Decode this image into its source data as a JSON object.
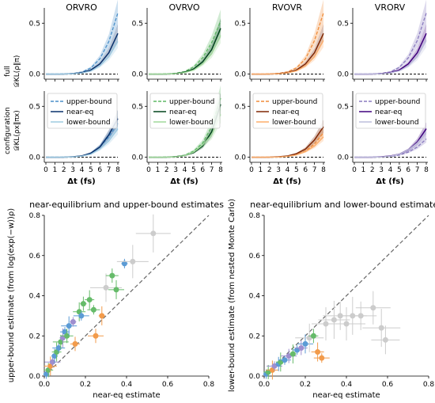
{
  "panel_titles": [
    "ORVRO",
    "OVRVO",
    "RVOVR",
    "VRORV"
  ],
  "row_labels": [
    {
      "line1": "full",
      "line2": "𝒟KL(ρ‖π)"
    },
    {
      "line1": "configuration",
      "line2": "𝒟KL(ρx‖πx)"
    }
  ],
  "x_label": "Δt (fs)",
  "legend_labels": [
    "upper-bound",
    "near-eq",
    "lower-bound"
  ],
  "colors": {
    "ORVRO": {
      "dark": "#08306b",
      "mid": "#4a8fc9",
      "light": "#9ecae1"
    },
    "OVRVO": {
      "dark": "#00441b",
      "mid": "#5fb865",
      "light": "#a1d99b"
    },
    "RVOVR": {
      "dark": "#7f2704",
      "mid": "#f08c3a",
      "light": "#fdae6b"
    },
    "VRORV": {
      "dark": "#3f007d",
      "mid": "#8a7bbf",
      "light": "#bcbddc"
    },
    "gray": "#cccccc"
  },
  "chart_data": [
    {
      "type": "line",
      "panel": "ORVRO / full",
      "x": [
        0,
        1,
        2,
        3,
        4,
        5,
        6,
        7,
        8
      ],
      "xlabel": "Δt (fs)",
      "ylabel": "𝒟KL(ρ‖π)",
      "yticks": [
        0.0,
        0.5
      ],
      "ylim": [
        -0.05,
        0.65
      ],
      "series": [
        {
          "name": "upper-bound",
          "values": [
            0,
            0,
            0.002,
            0.006,
            0.02,
            0.06,
            0.15,
            0.32,
            0.6
          ]
        },
        {
          "name": "near-eq",
          "values": [
            0,
            0,
            0.001,
            0.004,
            0.014,
            0.04,
            0.1,
            0.21,
            0.4
          ]
        },
        {
          "name": "lower-bound",
          "values": [
            0,
            0,
            0.001,
            0.003,
            0.01,
            0.03,
            0.08,
            0.17,
            0.32
          ]
        }
      ]
    },
    {
      "type": "line",
      "panel": "OVRVO / full",
      "x": [
        0,
        1,
        2,
        3,
        4,
        5,
        6,
        7,
        8
      ],
      "xlabel": "Δt (fs)",
      "yticks": [
        0.0,
        0.5
      ],
      "ylim": [
        -0.05,
        0.65
      ],
      "series": [
        {
          "name": "upper-bound",
          "values": [
            0,
            0,
            0.002,
            0.008,
            0.025,
            0.07,
            0.16,
            0.31,
            0.52
          ]
        },
        {
          "name": "near-eq",
          "values": [
            0,
            0,
            0.001,
            0.005,
            0.018,
            0.05,
            0.12,
            0.24,
            0.45
          ]
        },
        {
          "name": "lower-bound",
          "values": [
            0,
            0,
            0.001,
            0.004,
            0.014,
            0.04,
            0.1,
            0.2,
            0.38
          ]
        }
      ]
    },
    {
      "type": "line",
      "panel": "RVOVR / full",
      "x": [
        0,
        1,
        2,
        3,
        4,
        5,
        6,
        7,
        8
      ],
      "xlabel": "Δt (fs)",
      "yticks": [
        0.0,
        0.5
      ],
      "ylim": [
        -0.05,
        0.65
      ],
      "series": [
        {
          "name": "upper-bound",
          "values": [
            0,
            0,
            0.002,
            0.007,
            0.022,
            0.06,
            0.15,
            0.33,
            0.6
          ]
        },
        {
          "name": "near-eq",
          "values": [
            0,
            0,
            0.001,
            0.004,
            0.014,
            0.04,
            0.1,
            0.21,
            0.4
          ]
        },
        {
          "name": "lower-bound",
          "values": [
            0,
            0,
            0.001,
            0.003,
            0.011,
            0.032,
            0.08,
            0.17,
            0.33
          ]
        }
      ]
    },
    {
      "type": "line",
      "panel": "VRORV / full",
      "x": [
        0,
        1,
        2,
        3,
        4,
        5,
        6,
        7,
        8
      ],
      "xlabel": "Δt (fs)",
      "yticks": [
        0.0,
        0.5
      ],
      "ylim": [
        -0.05,
        0.65
      ],
      "series": [
        {
          "name": "upper-bound",
          "values": [
            0,
            0,
            0.002,
            0.007,
            0.022,
            0.065,
            0.16,
            0.33,
            0.6
          ]
        },
        {
          "name": "near-eq",
          "values": [
            0,
            0,
            0.001,
            0.004,
            0.014,
            0.04,
            0.1,
            0.21,
            0.4
          ]
        },
        {
          "name": "lower-bound",
          "values": [
            0,
            0,
            0.001,
            0.003,
            0.011,
            0.032,
            0.08,
            0.17,
            0.33
          ]
        }
      ]
    },
    {
      "type": "line",
      "panel": "ORVRO / configuration",
      "x": [
        0,
        1,
        2,
        3,
        4,
        5,
        6,
        7,
        8
      ],
      "xlabel": "Δt (fs)",
      "ylabel": "𝒟KL(ρx‖πx)",
      "yticks": [
        0.0,
        0.5
      ],
      "ylim": [
        -0.05,
        0.65
      ],
      "series": [
        {
          "name": "upper-bound",
          "values": [
            0,
            0,
            0.001,
            0.004,
            0.013,
            0.04,
            0.1,
            0.2,
            0.33
          ]
        },
        {
          "name": "near-eq",
          "values": [
            0,
            0,
            0.001,
            0.004,
            0.013,
            0.04,
            0.1,
            0.22,
            0.38
          ]
        },
        {
          "name": "lower-bound",
          "values": [
            0,
            0,
            0.001,
            0.003,
            0.01,
            0.03,
            0.08,
            0.16,
            0.28
          ]
        }
      ]
    },
    {
      "type": "line",
      "panel": "OVRVO / configuration",
      "x": [
        0,
        1,
        2,
        3,
        4,
        5,
        6,
        7,
        8
      ],
      "xlabel": "Δt (fs)",
      "yticks": [
        0.0,
        0.5
      ],
      "ylim": [
        -0.05,
        0.65
      ],
      "series": [
        {
          "name": "upper-bound",
          "values": [
            0,
            0,
            0.002,
            0.006,
            0.02,
            0.06,
            0.14,
            0.3,
            0.58
          ]
        },
        {
          "name": "near-eq",
          "values": [
            0,
            0,
            0.001,
            0.005,
            0.016,
            0.045,
            0.11,
            0.25,
            0.52
          ]
        },
        {
          "name": "lower-bound",
          "values": [
            0,
            0,
            0.001,
            0.004,
            0.015,
            0.05,
            0.12,
            0.22,
            0.42
          ]
        }
      ]
    },
    {
      "type": "line",
      "panel": "RVOVR / configuration",
      "x": [
        0,
        1,
        2,
        3,
        4,
        5,
        6,
        7,
        8
      ],
      "xlabel": "Δt (fs)",
      "yticks": [
        0.0,
        0.5
      ],
      "ylim": [
        -0.05,
        0.65
      ],
      "series": [
        {
          "name": "upper-bound",
          "values": [
            0,
            0,
            0.001,
            0.003,
            0.009,
            0.025,
            0.06,
            0.13,
            0.24
          ]
        },
        {
          "name": "near-eq",
          "values": [
            0,
            0,
            0.001,
            0.004,
            0.012,
            0.035,
            0.08,
            0.17,
            0.3
          ]
        },
        {
          "name": "lower-bound",
          "values": [
            0,
            0,
            0.001,
            0.002,
            0.008,
            0.022,
            0.055,
            0.11,
            0.2
          ]
        }
      ]
    },
    {
      "type": "line",
      "panel": "VRORV / configuration",
      "x": [
        0,
        1,
        2,
        3,
        4,
        5,
        6,
        7,
        8
      ],
      "xlabel": "Δt (fs)",
      "yticks": [
        0.0,
        0.5
      ],
      "ylim": [
        -0.05,
        0.65
      ],
      "series": [
        {
          "name": "upper-bound",
          "values": [
            0,
            0,
            0.001,
            0.003,
            0.008,
            0.02,
            0.05,
            0.1,
            0.18
          ]
        },
        {
          "name": "near-eq",
          "values": [
            0,
            0,
            0.001,
            0.004,
            0.012,
            0.03,
            0.07,
            0.15,
            0.28
          ]
        },
        {
          "name": "lower-bound",
          "values": [
            0,
            0,
            0.001,
            0.003,
            0.01,
            0.03,
            0.07,
            0.14,
            0.25
          ]
        }
      ]
    },
    {
      "type": "scatter",
      "title": "near-equilibrium and upper-bound estimates",
      "xlabel": "near-eq estimate",
      "ylabel": "upper-bound estimate (from log(exp(−w))ρ)",
      "xlim": [
        0,
        0.8
      ],
      "ylim": [
        0,
        0.8
      ],
      "ticks": [
        0.0,
        0.2,
        0.4,
        0.6,
        0.8
      ],
      "reference_line": "y = x (dashed)",
      "points": [
        {
          "x": 0.01,
          "y": 0.01,
          "s": "ORVRO"
        },
        {
          "x": 0.02,
          "y": 0.03,
          "s": "OVRVO"
        },
        {
          "x": 0.03,
          "y": 0.05,
          "s": "RVOVR"
        },
        {
          "x": 0.04,
          "y": 0.07,
          "s": "VRORV"
        },
        {
          "x": 0.05,
          "y": 0.1,
          "s": "ORVRO"
        },
        {
          "x": 0.06,
          "y": 0.12,
          "s": "OVRVO"
        },
        {
          "x": 0.07,
          "y": 0.14,
          "s": "ORVRO"
        },
        {
          "x": 0.08,
          "y": 0.17,
          "s": "OVRVO"
        },
        {
          "x": 0.09,
          "y": 0.19,
          "s": "VRORV"
        },
        {
          "x": 0.1,
          "y": 0.22,
          "s": "ORVRO"
        },
        {
          "x": 0.11,
          "y": 0.2,
          "s": "OVRVO"
        },
        {
          "x": 0.12,
          "y": 0.25,
          "s": "ORVRO"
        },
        {
          "x": 0.14,
          "y": 0.27,
          "s": "VRORV"
        },
        {
          "x": 0.15,
          "y": 0.16,
          "s": "RVOVR"
        },
        {
          "x": 0.17,
          "y": 0.32,
          "s": "OVRVO"
        },
        {
          "x": 0.18,
          "y": 0.3,
          "s": "ORVRO"
        },
        {
          "x": 0.19,
          "y": 0.36,
          "s": "OVRVO"
        },
        {
          "x": 0.22,
          "y": 0.38,
          "s": "OVRVO"
        },
        {
          "x": 0.24,
          "y": 0.33,
          "s": "OVRVO"
        },
        {
          "x": 0.25,
          "y": 0.2,
          "s": "RVOVR"
        },
        {
          "x": 0.28,
          "y": 0.3,
          "s": "RVOVR"
        },
        {
          "x": 0.3,
          "y": 0.44,
          "s": "gray"
        },
        {
          "x": 0.33,
          "y": 0.5,
          "s": "OVRVO"
        },
        {
          "x": 0.35,
          "y": 0.43,
          "s": "OVRVO"
        },
        {
          "x": 0.39,
          "y": 0.56,
          "s": "ORVRO"
        },
        {
          "x": 0.43,
          "y": 0.57,
          "s": "gray"
        },
        {
          "x": 0.53,
          "y": 0.71,
          "s": "gray"
        }
      ]
    },
    {
      "type": "scatter",
      "title": "near-equilibrium and lower-bound estimates",
      "xlabel": "near-eq estimate",
      "ylabel": "lower-bound estimate (from nested Monte Carlo)",
      "xlim": [
        0,
        0.8
      ],
      "ylim": [
        0,
        0.8
      ],
      "ticks": [
        0.0,
        0.2,
        0.4,
        0.6,
        0.8
      ],
      "reference_line": "y = x (dashed)",
      "points": [
        {
          "x": 0.01,
          "y": 0.01,
          "s": "ORVRO"
        },
        {
          "x": 0.02,
          "y": 0.02,
          "s": "OVRVO"
        },
        {
          "x": 0.04,
          "y": 0.03,
          "s": "RVOVR"
        },
        {
          "x": 0.05,
          "y": 0.05,
          "s": "VRORV"
        },
        {
          "x": 0.07,
          "y": 0.06,
          "s": "ORVRO"
        },
        {
          "x": 0.08,
          "y": 0.07,
          "s": "OVRVO"
        },
        {
          "x": 0.1,
          "y": 0.08,
          "s": "ORVRO"
        },
        {
          "x": 0.12,
          "y": 0.1,
          "s": "VRORV"
        },
        {
          "x": 0.14,
          "y": 0.11,
          "s": "OVRVO"
        },
        {
          "x": 0.16,
          "y": 0.13,
          "s": "ORVRO"
        },
        {
          "x": 0.18,
          "y": 0.14,
          "s": "VRORV"
        },
        {
          "x": 0.2,
          "y": 0.16,
          "s": "ORVRO"
        },
        {
          "x": 0.22,
          "y": 0.19,
          "s": "gray"
        },
        {
          "x": 0.24,
          "y": 0.2,
          "s": "OVRVO"
        },
        {
          "x": 0.26,
          "y": 0.12,
          "s": "RVOVR"
        },
        {
          "x": 0.28,
          "y": 0.09,
          "s": "RVOVR"
        },
        {
          "x": 0.3,
          "y": 0.26,
          "s": "gray"
        },
        {
          "x": 0.34,
          "y": 0.28,
          "s": "gray"
        },
        {
          "x": 0.37,
          "y": 0.3,
          "s": "gray"
        },
        {
          "x": 0.4,
          "y": 0.26,
          "s": "gray"
        },
        {
          "x": 0.43,
          "y": 0.3,
          "s": "gray"
        },
        {
          "x": 0.47,
          "y": 0.3,
          "s": "gray"
        },
        {
          "x": 0.53,
          "y": 0.34,
          "s": "gray"
        },
        {
          "x": 0.57,
          "y": 0.24,
          "s": "gray"
        },
        {
          "x": 0.59,
          "y": 0.18,
          "s": "gray"
        }
      ]
    }
  ]
}
